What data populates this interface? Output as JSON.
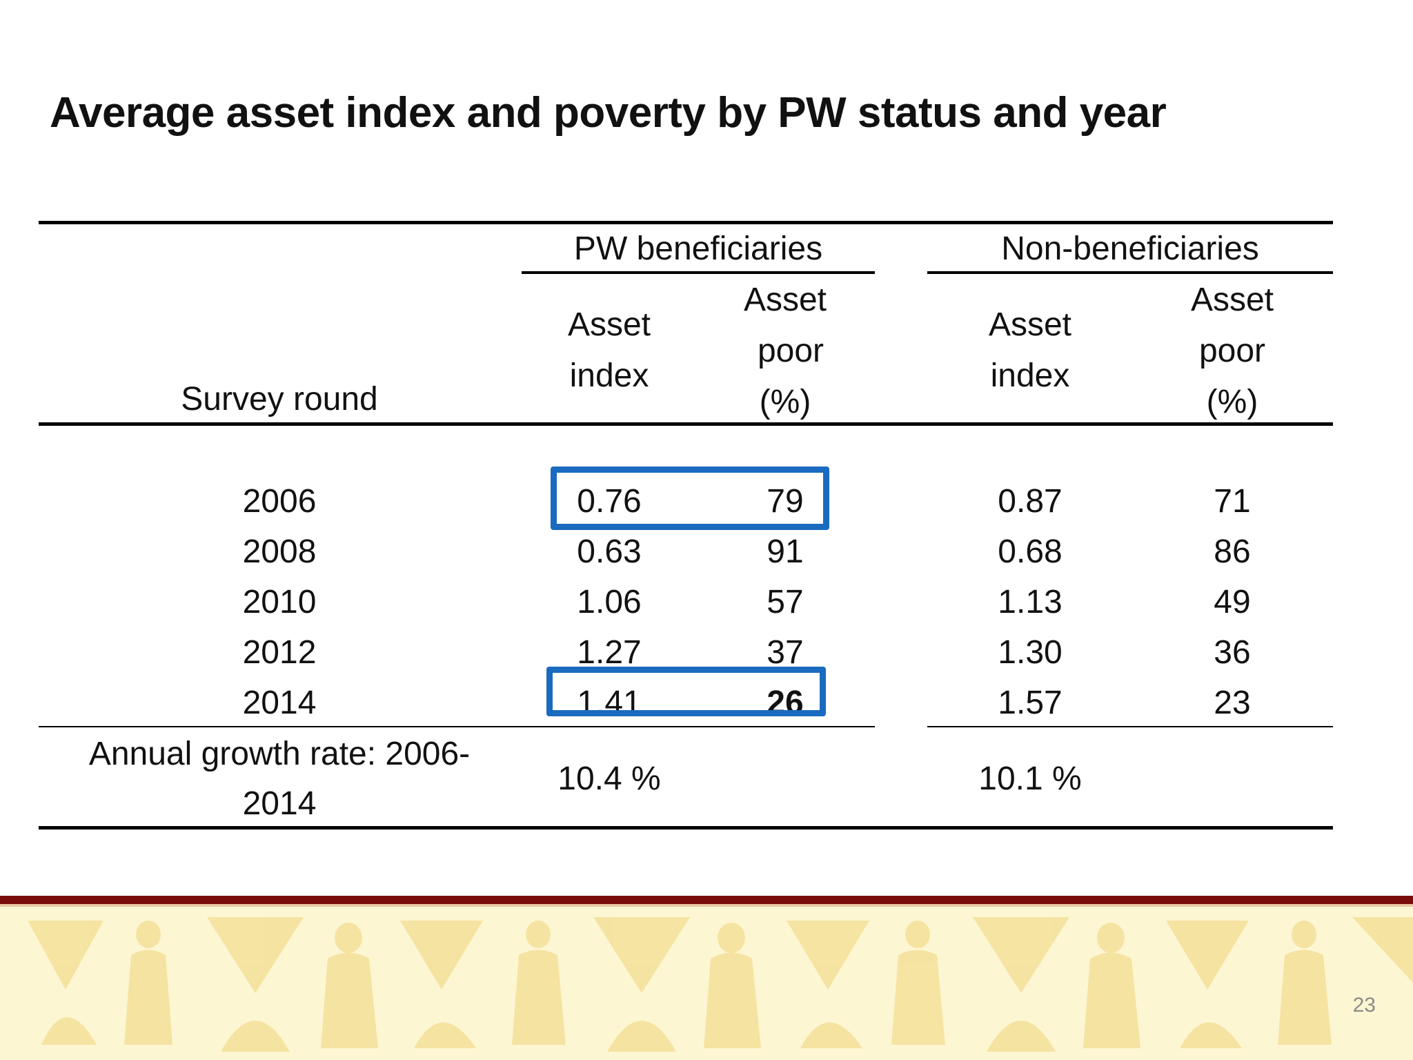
{
  "title": "Average asset index and poverty by PW status and year",
  "table": {
    "row_header": "Survey round",
    "groups": [
      {
        "label": "PW beneficiaries",
        "col1": [
          "Asset",
          "index"
        ],
        "col2": [
          "Asset",
          "poor",
          "(%)"
        ]
      },
      {
        "label": "Non-beneficiaries",
        "col1": [
          "Asset",
          "index"
        ],
        "col2": [
          "Asset",
          "poor",
          "(%)"
        ]
      }
    ],
    "rows": [
      {
        "year": "2006",
        "pw_index": "0.76",
        "pw_poor": "79",
        "non_index": "0.87",
        "non_poor": "71"
      },
      {
        "year": "2008",
        "pw_index": "0.63",
        "pw_poor": "91",
        "non_index": "0.68",
        "non_poor": "86"
      },
      {
        "year": "2010",
        "pw_index": "1.06",
        "pw_poor": "57",
        "non_index": "1.13",
        "non_poor": "49"
      },
      {
        "year": "2012",
        "pw_index": "1.27",
        "pw_poor": "37",
        "non_index": "1.30",
        "non_poor": "36"
      },
      {
        "year": "2014",
        "pw_index": "1.41",
        "pw_poor": "26",
        "non_index": "1.57",
        "non_poor": "23"
      }
    ],
    "growth": {
      "label_line1": "Annual growth rate:  2006-",
      "label_line2": "2014",
      "pw": "10.4 %",
      "non": "10.1 %"
    }
  },
  "highlight_color": "#1a6bbf",
  "footer_colors": {
    "band": "#7b0c0c",
    "pattern": "#f5e3a0"
  },
  "page_number": "23"
}
